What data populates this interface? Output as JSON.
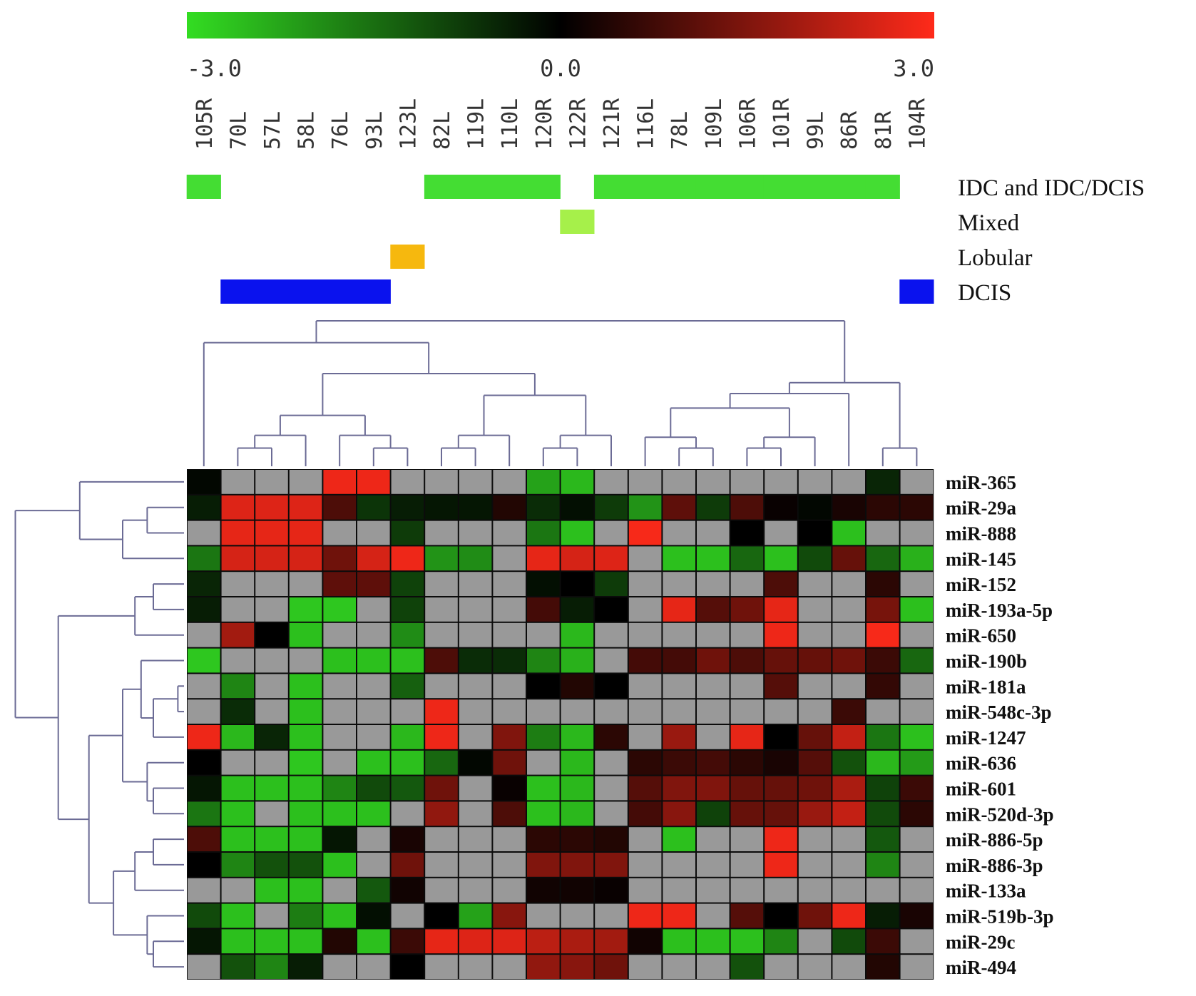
{
  "chart_data": {
    "type": "heatmap",
    "color_scale": {
      "min": -3.0,
      "mid": 0.0,
      "max": 3.0,
      "tick_labels": [
        "-3.0",
        "0.0",
        "3.0"
      ],
      "low_color": "#33dd22",
      "mid_color": "#000000",
      "high_color": "#ff2a1a",
      "missing_color": "#999999"
    },
    "columns": [
      "105R",
      "70L",
      "57L",
      "58L",
      "76L",
      "93L",
      "123L",
      "82L",
      "119L",
      "110L",
      "120R",
      "122R",
      "121R",
      "116L",
      "78L",
      "109L",
      "106R",
      "101R",
      "99L",
      "86R",
      "81R",
      "104R"
    ],
    "rows": [
      "miR-365",
      "miR-29a",
      "miR-888",
      "miR-145",
      "miR-152",
      "miR-193a-5p",
      "miR-650",
      "miR-190b",
      "miR-181a",
      "miR-548c-3p",
      "miR-1247",
      "miR-636",
      "miR-601",
      "miR-520d-3p",
      "miR-886-5p",
      "miR-886-3p",
      "miR-133a",
      "miR-519b-3p",
      "miR-29c",
      "miR-494"
    ],
    "values": [
      [
        -0.1,
        null,
        null,
        null,
        2.8,
        2.8,
        null,
        null,
        null,
        null,
        -2.2,
        -2.5,
        null,
        null,
        null,
        null,
        null,
        null,
        null,
        null,
        -0.5,
        null
      ],
      [
        -0.4,
        2.6,
        2.6,
        2.6,
        0.9,
        -0.7,
        -0.4,
        -0.3,
        -0.3,
        0.4,
        -0.6,
        -0.2,
        -0.8,
        -2.0,
        1.1,
        -0.8,
        0.9,
        0.1,
        -0.1,
        0.3,
        0.5,
        0.5
      ],
      [
        null,
        2.7,
        2.7,
        2.7,
        null,
        null,
        -0.8,
        null,
        null,
        null,
        -1.6,
        -2.6,
        null,
        2.9,
        null,
        null,
        0.0,
        null,
        0.0,
        -2.6,
        null,
        null
      ],
      [
        -1.6,
        2.5,
        2.5,
        2.5,
        1.3,
        2.5,
        2.8,
        -2.0,
        -1.9,
        null,
        2.7,
        2.5,
        2.6,
        null,
        -2.6,
        -2.6,
        -1.4,
        -2.6,
        -1.0,
        1.2,
        -1.4,
        -2.4
      ],
      [
        -0.5,
        null,
        null,
        null,
        1.1,
        1.1,
        -0.9,
        null,
        null,
        null,
        -0.2,
        0.0,
        -0.8,
        null,
        null,
        null,
        null,
        0.9,
        null,
        null,
        0.5,
        null
      ],
      [
        -0.4,
        null,
        null,
        -2.7,
        -2.7,
        null,
        -0.9,
        null,
        null,
        null,
        0.8,
        -0.4,
        0.0,
        null,
        2.7,
        1.0,
        1.3,
        2.7,
        null,
        null,
        1.4,
        -2.6
      ],
      [
        null,
        1.9,
        0.0,
        -2.6,
        null,
        null,
        -1.9,
        null,
        null,
        null,
        null,
        -2.5,
        null,
        null,
        null,
        null,
        null,
        2.8,
        null,
        null,
        2.9,
        null
      ],
      [
        -2.7,
        null,
        null,
        null,
        -2.6,
        -2.6,
        -2.6,
        0.9,
        -0.6,
        -0.6,
        -1.8,
        -2.4,
        null,
        0.8,
        0.8,
        1.3,
        0.9,
        1.2,
        1.2,
        1.3,
        0.7,
        -1.4
      ],
      [
        null,
        -1.8,
        null,
        -2.6,
        null,
        null,
        -1.3,
        null,
        null,
        null,
        0.0,
        0.4,
        0.0,
        null,
        null,
        null,
        null,
        1.0,
        null,
        null,
        0.6,
        null
      ],
      [
        null,
        -0.6,
        null,
        -2.6,
        null,
        null,
        null,
        2.8,
        null,
        null,
        null,
        null,
        null,
        null,
        null,
        null,
        null,
        null,
        null,
        0.7,
        null,
        null
      ],
      [
        2.8,
        -2.5,
        -0.5,
        -2.6,
        null,
        null,
        -2.5,
        2.8,
        null,
        1.5,
        -1.7,
        -2.5,
        0.5,
        null,
        1.8,
        null,
        2.7,
        0.0,
        1.2,
        2.3,
        -1.6,
        -2.6
      ],
      [
        0.0,
        null,
        null,
        -2.7,
        null,
        -2.6,
        -2.6,
        -1.4,
        -0.1,
        1.3,
        null,
        -2.5,
        null,
        0.5,
        0.7,
        0.8,
        0.5,
        0.3,
        1.0,
        -1.1,
        -2.5,
        -2.1
      ],
      [
        -0.3,
        -2.6,
        -2.6,
        -2.6,
        -1.8,
        -1.0,
        -1.2,
        1.3,
        null,
        0.1,
        -2.6,
        -2.5,
        null,
        1.0,
        1.5,
        1.5,
        1.2,
        1.2,
        1.3,
        2.0,
        -0.9,
        0.7
      ],
      [
        -1.6,
        -2.6,
        null,
        -2.6,
        -2.6,
        -2.6,
        null,
        1.7,
        null,
        0.9,
        -2.6,
        -2.5,
        null,
        0.8,
        1.6,
        -0.9,
        1.2,
        1.2,
        1.8,
        2.3,
        -1.0,
        0.5
      ],
      [
        0.9,
        -2.6,
        -2.6,
        -2.6,
        -0.3,
        null,
        0.3,
        null,
        null,
        null,
        0.5,
        0.5,
        0.4,
        null,
        -2.6,
        null,
        null,
        2.8,
        null,
        null,
        -1.2,
        null
      ],
      [
        0.0,
        -1.8,
        -1.1,
        -1.1,
        -2.6,
        null,
        1.3,
        null,
        null,
        null,
        1.5,
        1.5,
        1.5,
        null,
        null,
        null,
        null,
        2.8,
        null,
        null,
        -1.8,
        null
      ],
      [
        null,
        null,
        -2.6,
        -2.6,
        null,
        -1.2,
        0.2,
        null,
        null,
        null,
        0.2,
        0.2,
        0.1,
        null,
        null,
        null,
        null,
        null,
        null,
        null,
        null,
        null
      ],
      [
        -1.0,
        -2.6,
        null,
        -1.7,
        -2.6,
        -0.2,
        null,
        0.0,
        -2.2,
        1.6,
        null,
        null,
        null,
        2.8,
        2.8,
        null,
        1.0,
        0.0,
        1.3,
        2.8,
        -0.4,
        0.3
      ],
      [
        -0.3,
        -2.6,
        -2.6,
        -2.6,
        0.4,
        -2.6,
        0.7,
        2.7,
        2.6,
        2.6,
        2.2,
        2.0,
        1.9,
        0.2,
        -2.6,
        -2.6,
        -2.6,
        -1.8,
        null,
        -1.0,
        0.7,
        null
      ],
      [
        null,
        -1.1,
        -1.8,
        -0.4,
        null,
        null,
        0.0,
        null,
        null,
        null,
        1.7,
        1.6,
        1.3,
        null,
        null,
        null,
        -1.1,
        null,
        null,
        null,
        0.4,
        null
      ]
    ],
    "annotation_tracks": [
      {
        "label": "IDC and IDC/DCIS",
        "color": "#44dd33",
        "columns": [
          "105R",
          "82L",
          "119L",
          "110L",
          "120R",
          "121R",
          "116L",
          "78L",
          "109L",
          "106R",
          "101R",
          "99L",
          "86R",
          "81R"
        ]
      },
      {
        "label": "Mixed",
        "color": "#a6f04a",
        "columns": [
          "122R"
        ]
      },
      {
        "label": "Lobular",
        "color": "#f6b80e",
        "columns": [
          "123L"
        ]
      },
      {
        "label": "DCIS",
        "color": "#0a12ee",
        "columns": [
          "70L",
          "57L",
          "58L",
          "76L",
          "93L",
          "104R"
        ]
      }
    ],
    "dendrogram_color": "#6b6b95"
  }
}
